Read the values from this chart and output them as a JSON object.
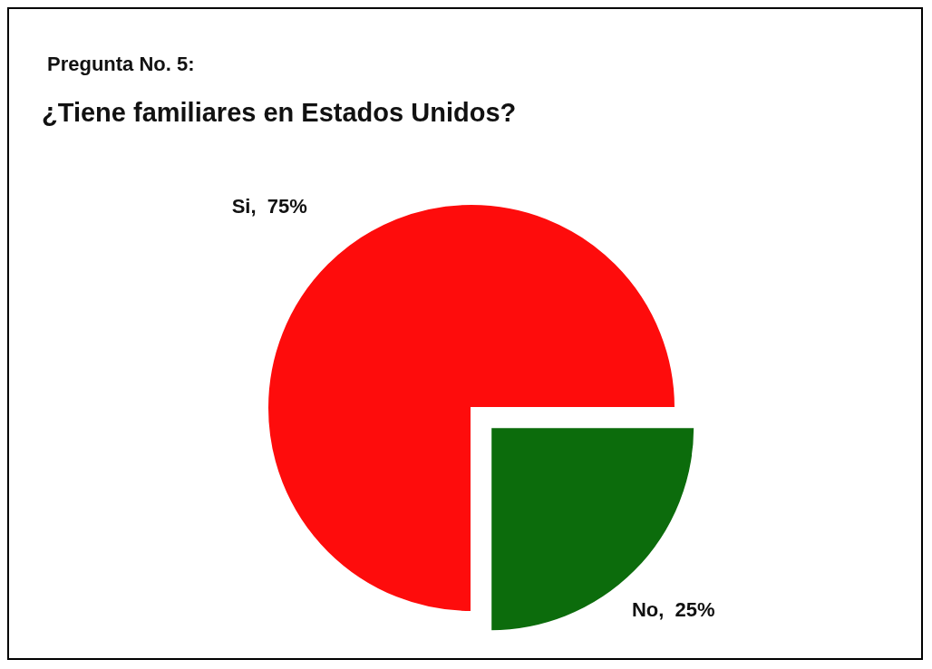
{
  "chart_data": {
    "type": "pie",
    "title": "Pregunta No. 5:",
    "subtitle": "¿Tiene familiares en Estados Unidos?",
    "categories": [
      "Si",
      "No"
    ],
    "values": [
      75,
      25
    ],
    "colors": [
      "#fe0c0c",
      "#0c6c0c"
    ],
    "value_labels": [
      "75%",
      "25%"
    ],
    "legend": false
  }
}
